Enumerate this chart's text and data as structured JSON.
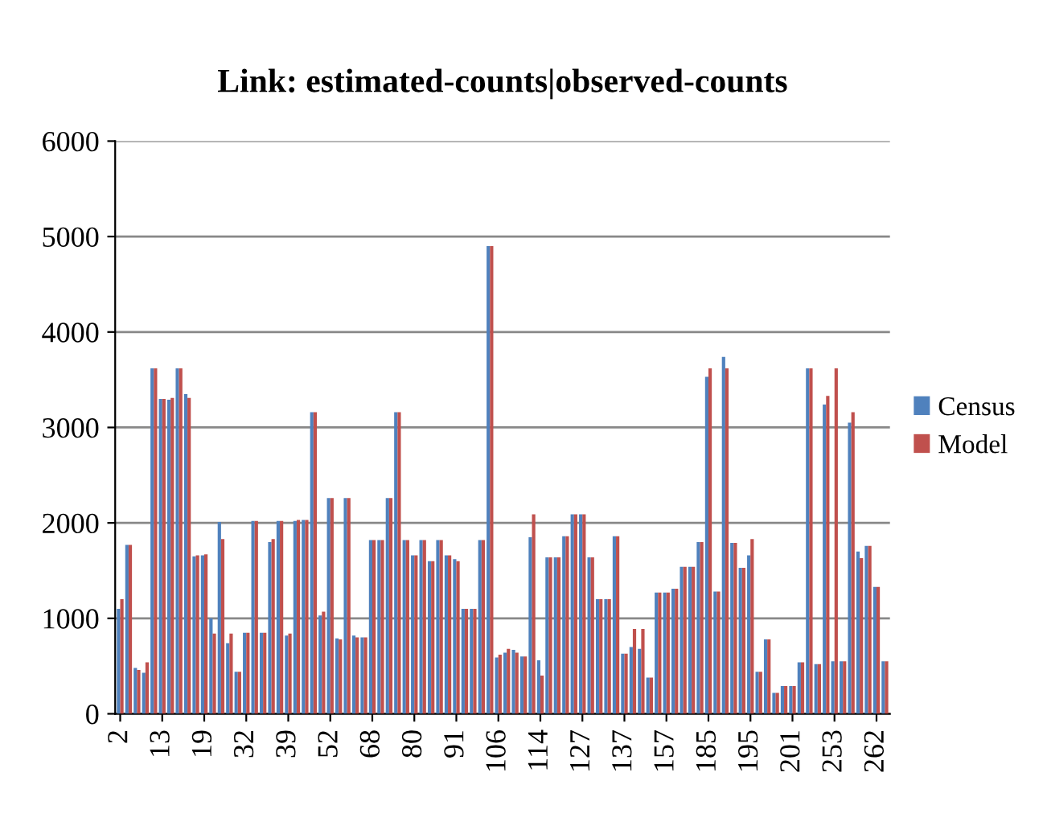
{
  "chart_data": {
    "type": "bar",
    "title": "Link: estimated-counts|observed-counts",
    "categories": [
      "2",
      null,
      null,
      null,
      null,
      "13",
      null,
      null,
      null,
      null,
      "19",
      null,
      null,
      null,
      null,
      "32",
      null,
      null,
      null,
      null,
      "39",
      null,
      null,
      null,
      null,
      "52",
      null,
      null,
      null,
      null,
      "68",
      null,
      null,
      null,
      null,
      "80",
      null,
      null,
      null,
      null,
      "91",
      null,
      null,
      null,
      null,
      "106",
      null,
      null,
      null,
      null,
      "114",
      null,
      null,
      null,
      null,
      "127",
      null,
      null,
      null,
      null,
      "137",
      null,
      null,
      null,
      null,
      "157",
      null,
      null,
      null,
      null,
      "185",
      null,
      null,
      null,
      null,
      "195",
      null,
      null,
      null,
      null,
      "201",
      null,
      null,
      null,
      null,
      "253",
      null,
      null,
      null,
      null,
      "262",
      null
    ],
    "series": [
      {
        "name": "Census",
        "color": "#4f81bd",
        "values": [
          1100,
          1770,
          480,
          430,
          3620,
          3300,
          3290,
          3620,
          3350,
          1650,
          1660,
          1000,
          2010,
          740,
          440,
          850,
          2020,
          850,
          1800,
          2020,
          820,
          2020,
          2030,
          3160,
          1030,
          2260,
          790,
          2260,
          820,
          800,
          1820,
          1820,
          2260,
          3160,
          1820,
          1660,
          1820,
          1600,
          1820,
          1660,
          1620,
          1100,
          1100,
          1820,
          4900,
          590,
          640,
          670,
          600,
          1850,
          560,
          1640,
          1640,
          1860,
          2090,
          2090,
          1640,
          1200,
          1200,
          1860,
          630,
          700,
          680,
          380,
          1270,
          1270,
          1310,
          1540,
          1540,
          1800,
          3530,
          1280,
          3740,
          1790,
          1530,
          1660,
          440,
          780,
          220,
          290,
          290,
          540,
          3620,
          520,
          3240,
          550,
          550,
          3050,
          1700,
          1760,
          1330,
          550
        ]
      },
      {
        "name": "Model",
        "color": "#c0504d",
        "values": [
          1200,
          1770,
          460,
          540,
          3620,
          3300,
          3310,
          3620,
          3310,
          1660,
          1670,
          840,
          1830,
          840,
          440,
          850,
          2020,
          850,
          1830,
          2020,
          840,
          2030,
          2030,
          3160,
          1070,
          2260,
          780,
          2260,
          800,
          800,
          1820,
          1820,
          2260,
          3160,
          1820,
          1660,
          1820,
          1600,
          1820,
          1660,
          1600,
          1100,
          1100,
          1820,
          4900,
          620,
          680,
          640,
          600,
          2090,
          400,
          1640,
          1640,
          1860,
          2090,
          2090,
          1640,
          1200,
          1200,
          1860,
          630,
          890,
          890,
          380,
          1270,
          1270,
          1310,
          1540,
          1540,
          1800,
          3620,
          1280,
          3620,
          1790,
          1530,
          1830,
          440,
          780,
          220,
          290,
          290,
          540,
          3620,
          520,
          3330,
          3620,
          550,
          3160,
          1630,
          1760,
          1330,
          550
        ]
      }
    ],
    "ylim": [
      0,
      6000
    ],
    "yticks": [
      0,
      1000,
      2000,
      3000,
      4000,
      5000,
      6000
    ],
    "grid": "y",
    "legend": "right"
  }
}
